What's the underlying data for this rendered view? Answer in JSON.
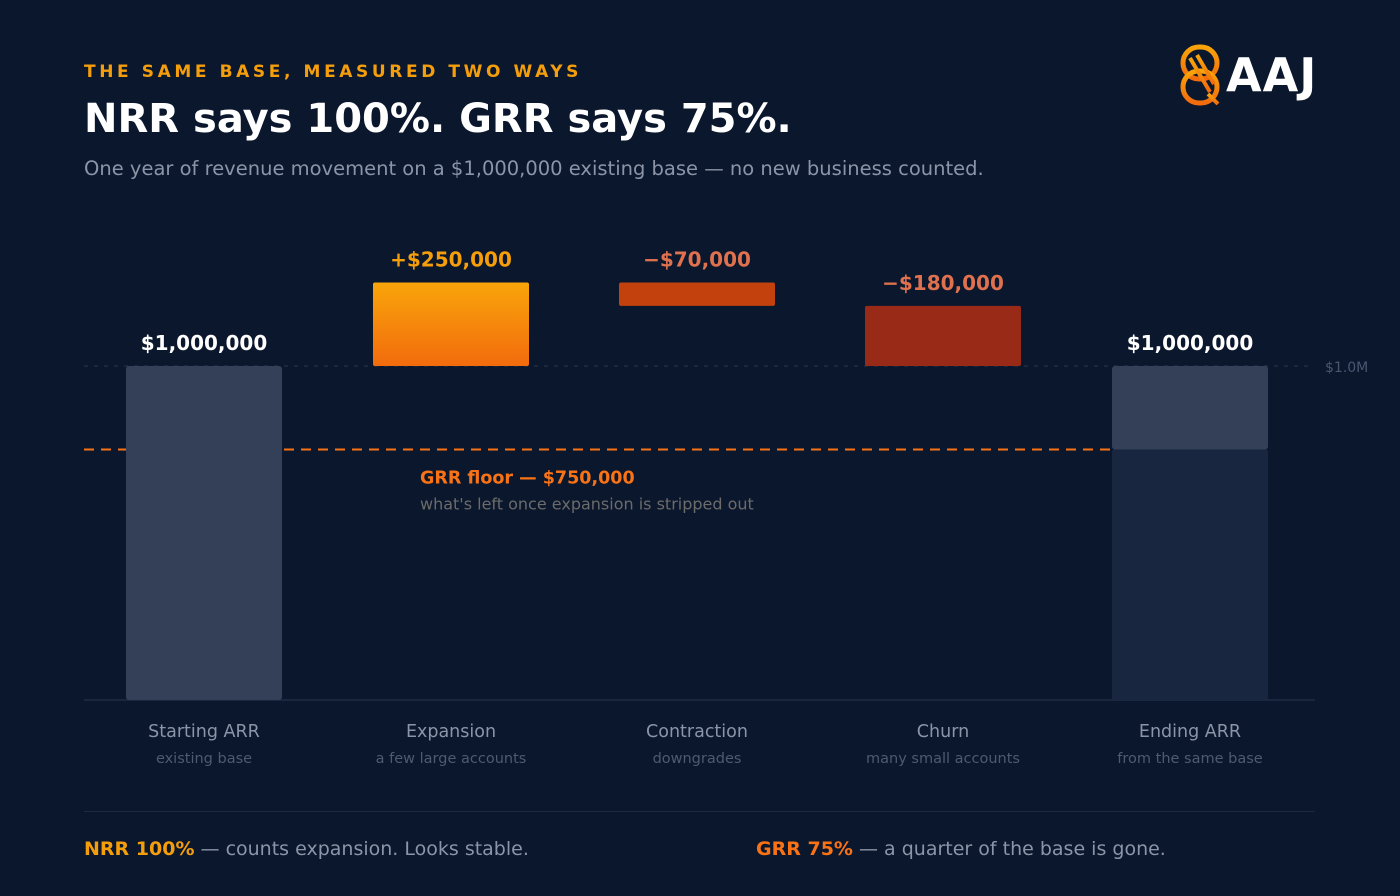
{
  "header": {
    "eyebrow": "THE SAME BASE, MEASURED TWO WAYS",
    "title": "NRR says 100%. GRR says 75%.",
    "subtitle": "One year of revenue movement on a $1,000,000 existing base — no new business counted."
  },
  "logo": {
    "text": "AAJ",
    "icon": "aaj-logo-icon"
  },
  "colors": {
    "background": "#0b172d",
    "base_bar": "#334057",
    "ending_lower": "#18273f",
    "expansion_top": "#f9a50a",
    "expansion_bottom": "#f26b0d",
    "contraction": "#c2410c",
    "churn": "#992a18",
    "accent_amber": "#f59e0b",
    "accent_orange": "#f97316",
    "negative_label": "#e0714e"
  },
  "chart_data": {
    "type": "waterfall",
    "title": "NRR says 100%. GRR says 75%.",
    "reference_line": {
      "value": 1000000,
      "label": "$1.0M"
    },
    "grr_floor": {
      "value": 750000,
      "label": "GRR floor — $750,000",
      "note": "what's left once expansion is stripped out"
    },
    "steps": [
      {
        "category": "Starting ARR",
        "sub": "existing base",
        "value": 1000000,
        "kind": "total",
        "label": "$1,000,000"
      },
      {
        "category": "Expansion",
        "sub": "a few large accounts",
        "value": 250000,
        "kind": "increase",
        "label": "+$250,000"
      },
      {
        "category": "Contraction",
        "sub": "downgrades",
        "value": -70000,
        "kind": "decrease",
        "label": "−$70,000"
      },
      {
        "category": "Churn",
        "sub": "many small accounts",
        "value": -180000,
        "kind": "decrease",
        "label": "−$180,000"
      },
      {
        "category": "Ending ARR",
        "sub": "from the same base",
        "value": 1000000,
        "kind": "total",
        "label": "$1,000,000"
      }
    ]
  },
  "footer": {
    "nrr_label": "NRR 100%",
    "nrr_text": " — counts expansion. Looks stable.",
    "grr_label": "GRR 75%",
    "grr_text": " — a quarter of the base is gone."
  }
}
